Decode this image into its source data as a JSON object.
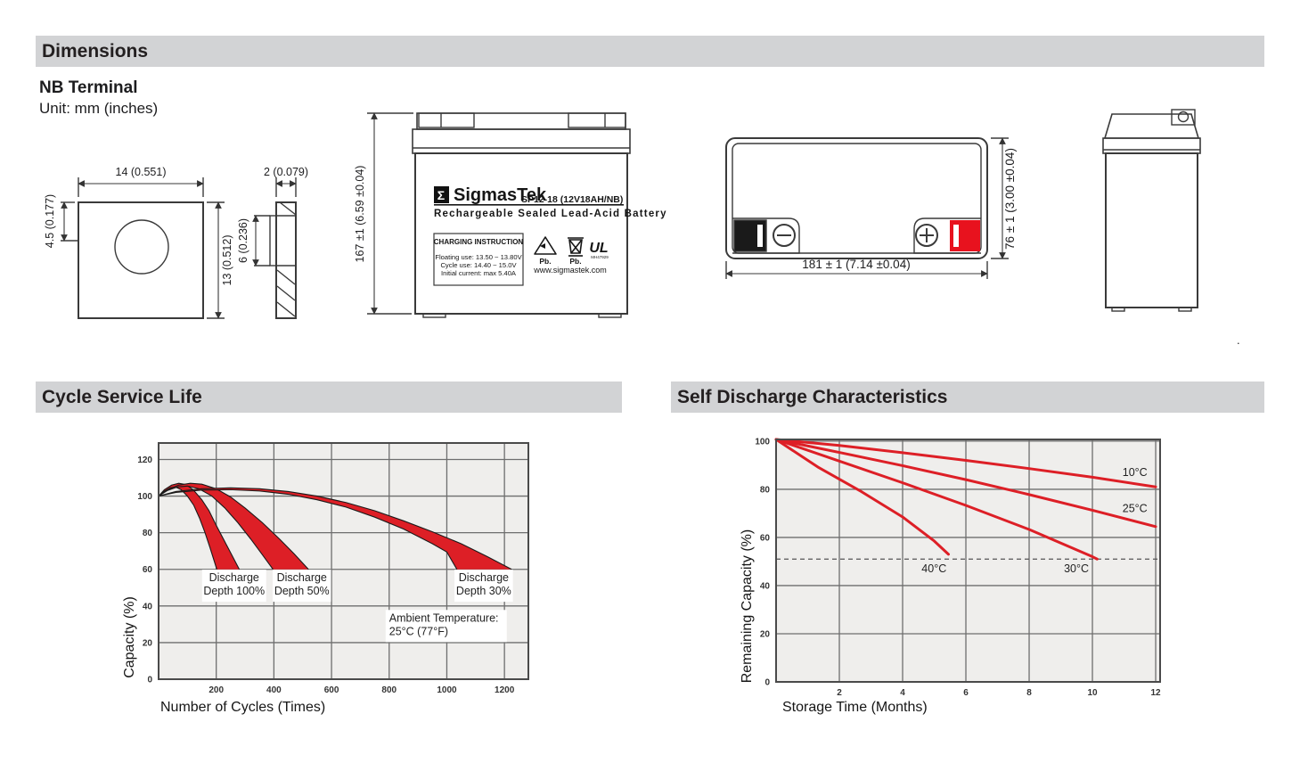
{
  "sections": {
    "dimensions_title": "Dimensions",
    "cycle_title": "Cycle Service Life",
    "self_discharge_title": "Self Discharge Characteristics"
  },
  "dimensions": {
    "subtitle": "NB Terminal",
    "unit_note": "Unit: mm (inches)",
    "labels": {
      "terminal_width": "14 (0.551)",
      "terminal_height": "13 (0.512)",
      "hole_offset": "4.5 (0.177)",
      "terminal_thickness": "2 (0.079)",
      "slot_height": "6 (0.236)",
      "front_height": "167 ±1 (6.59 ±0.04)",
      "top_width": "181 ± 1 (7.14 ±0.04)",
      "top_depth": "76 ± 1 (3.00 ±0.04)"
    },
    "battery_label": {
      "sigma": "Σ",
      "brand": "SigmasTek",
      "model": "SP12-18 (12V18AH/NB)",
      "subtitle": "Rechargeable Sealed Lead-Acid Battery",
      "charging_title": "CHARGING INSTRUCTION",
      "charging_lines": [
        "Floating use: 13.50 ~ 13.80V",
        "Cycle use: 14.40 ~ 15.0V",
        "Initial current: max 5.40A"
      ],
      "pb_recycle": "Pb.",
      "pb_bin": "Pb.",
      "ul_text": "UL",
      "ul_code": "MH47929",
      "website": "www.sigmastek.com"
    }
  },
  "colors": {
    "header_bg": "#d2d3d5",
    "red": "#dd1f26",
    "plot_bg": "#efeeec",
    "grid": "#6e6e6e",
    "border": "#4a4a4a"
  },
  "chart_data": [
    {
      "type": "area-band",
      "title": "Cycle Service Life",
      "xlabel": "Number of Cycles (Times)",
      "ylabel": "Capacity (%)",
      "xlim": [
        0,
        1283
      ],
      "ylim": [
        0,
        129
      ],
      "xticks": [
        200,
        400,
        600,
        800,
        1000,
        1200
      ],
      "yticks": [
        0,
        20,
        40,
        60,
        80,
        100,
        120
      ],
      "grid": true,
      "bands": [
        {
          "name": "Discharge Depth 100%",
          "baseline": 60,
          "upper": [
            [
              0,
              100
            ],
            [
              20,
              103.5
            ],
            [
              45,
              106
            ],
            [
              70,
              107
            ],
            [
              95,
              106.3
            ],
            [
              120,
              103.5
            ],
            [
              150,
              98
            ],
            [
              175,
              92
            ],
            [
              200,
              84
            ],
            [
              230,
              75
            ],
            [
              260,
              66
            ],
            [
              280,
              60
            ]
          ],
          "lower": [
            [
              0,
              100
            ],
            [
              18,
              102.5
            ],
            [
              40,
              104.5
            ],
            [
              58,
              105
            ],
            [
              78,
              103.5
            ],
            [
              100,
              100
            ],
            [
              122,
              95
            ],
            [
              142,
              88
            ],
            [
              160,
              80.5
            ],
            [
              178,
              72
            ],
            [
              192,
              65
            ],
            [
              202,
              60
            ]
          ]
        },
        {
          "name": "Discharge Depth 50%",
          "baseline": 60,
          "upper": [
            [
              0,
              100
            ],
            [
              30,
              103.5
            ],
            [
              70,
              106
            ],
            [
              110,
              107
            ],
            [
              150,
              106.5
            ],
            [
              200,
              104
            ],
            [
              250,
              99.5
            ],
            [
              300,
              93.5
            ],
            [
              360,
              85.5
            ],
            [
              420,
              76.5
            ],
            [
              470,
              68.5
            ],
            [
              520,
              60
            ]
          ],
          "lower": [
            [
              0,
              100
            ],
            [
              30,
              103
            ],
            [
              65,
              105
            ],
            [
              100,
              105.5
            ],
            [
              140,
              104
            ],
            [
              185,
              100
            ],
            [
              230,
              93.5
            ],
            [
              275,
              85.5
            ],
            [
              320,
              76.5
            ],
            [
              360,
              68
            ],
            [
              397,
              60
            ]
          ]
        },
        {
          "name": "Discharge Depth 30%",
          "baseline": 60,
          "upper": [
            [
              0,
              100
            ],
            [
              60,
              102.5
            ],
            [
              150,
              104
            ],
            [
              250,
              104.5
            ],
            [
              350,
              104
            ],
            [
              450,
              102.5
            ],
            [
              550,
              100
            ],
            [
              650,
              96.5
            ],
            [
              750,
              92
            ],
            [
              850,
              86.5
            ],
            [
              950,
              80.5
            ],
            [
              1050,
              74
            ],
            [
              1140,
              67
            ],
            [
              1225,
              60
            ]
          ],
          "lower": [
            [
              0,
              100
            ],
            [
              60,
              102
            ],
            [
              150,
              103.3
            ],
            [
              250,
              103.5
            ],
            [
              350,
              102.8
            ],
            [
              450,
              101
            ],
            [
              550,
              98
            ],
            [
              650,
              94
            ],
            [
              750,
              88.5
            ],
            [
              850,
              82
            ],
            [
              950,
              74
            ],
            [
              1000,
              69.5
            ],
            [
              1035,
              60
            ]
          ]
        }
      ],
      "annotations": [
        {
          "lines": [
            "Discharge",
            "Depth 100%"
          ],
          "x": 262,
          "y": 53.5,
          "align": "center",
          "bg": "#ffffff"
        },
        {
          "lines": [
            "Discharge",
            "Depth 50%"
          ],
          "x": 497,
          "y": 53.5,
          "align": "center",
          "bg": "#ffffff"
        },
        {
          "lines": [
            "Discharge",
            "Depth 30%"
          ],
          "x": 1128,
          "y": 53.5,
          "align": "center",
          "bg": "#ffffff"
        },
        {
          "lines": [
            "Ambient Temperature:",
            "25°C (77°F)"
          ],
          "x": 800,
          "y": 31.5,
          "align": "left",
          "bg": "#ffffff"
        }
      ]
    },
    {
      "type": "line",
      "title": "Self Discharge Characteristics",
      "xlabel": "Storage Time (Months)",
      "ylabel": "Remaining Capacity (%)",
      "xlim": [
        0,
        12.14
      ],
      "ylim": [
        0,
        100.7
      ],
      "xticks": [
        2,
        4,
        6,
        8,
        10,
        12
      ],
      "yticks": [
        0,
        20,
        40,
        60,
        80,
        100
      ],
      "grid": true,
      "dashed_line": {
        "y": 51
      },
      "series": [
        {
          "name": "10°C",
          "points": [
            [
              0,
              100.7
            ],
            [
              2,
              98.2
            ],
            [
              4,
              95.2
            ],
            [
              6,
              92
            ],
            [
              8,
              88.6
            ],
            [
              10,
              85
            ],
            [
              12,
              81
            ]
          ]
        },
        {
          "name": "25°C",
          "points": [
            [
              0,
              100.7
            ],
            [
              2,
              95.3
            ],
            [
              4,
              89.8
            ],
            [
              6,
              84
            ],
            [
              8,
              77.8
            ],
            [
              10,
              71.3
            ],
            [
              12,
              64.5
            ]
          ]
        },
        {
          "name": "30°C",
          "points": [
            [
              0,
              100.7
            ],
            [
              2,
              91.7
            ],
            [
              4,
              82.7
            ],
            [
              6,
              73.3
            ],
            [
              8,
              63.3
            ],
            [
              10,
              52
            ],
            [
              10.15,
              51
            ]
          ]
        },
        {
          "name": "40°C",
          "points": [
            [
              0,
              100.7
            ],
            [
              1.35,
              89
            ],
            [
              2.7,
              79
            ],
            [
              4,
              68.5
            ],
            [
              5,
              58.5
            ],
            [
              5.45,
              53
            ]
          ]
        }
      ],
      "labels": [
        {
          "text": "10°C",
          "x": 10.95,
          "y": 85.5
        },
        {
          "text": "25°C",
          "x": 10.95,
          "y": 70.5
        },
        {
          "text": "40°C",
          "x": 4.6,
          "y": 45.5
        },
        {
          "text": "30°C",
          "x": 9.1,
          "y": 45.5
        }
      ]
    }
  ],
  "misc": {
    "dot": "."
  }
}
